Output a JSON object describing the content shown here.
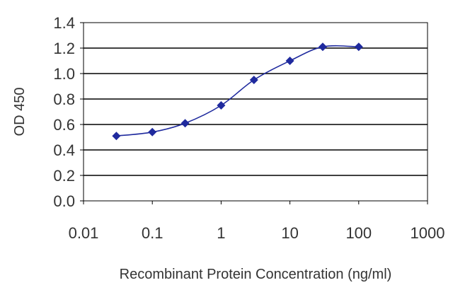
{
  "chart_data": {
    "type": "line",
    "x_scale": "log",
    "xlabel": "Recombinant Protein Concentration (ng/ml)",
    "ylabel": "OD 450",
    "xlim": [
      0.01,
      1000
    ],
    "ylim": [
      0,
      1.4
    ],
    "x_ticks": [
      0.01,
      0.1,
      1,
      10,
      100,
      1000
    ],
    "x_tick_labels": [
      "0.01",
      "0.1",
      "1",
      "10",
      "100",
      "1000"
    ],
    "y_ticks": [
      0,
      0.2,
      0.4,
      0.6,
      0.8,
      1.0,
      1.2,
      1.4
    ],
    "y_tick_labels": [
      "0.0",
      "0.2",
      "0.4",
      "0.6",
      "0.8",
      "1.0",
      "1.2",
      "1.4"
    ],
    "grid": "horizontal",
    "legend": "none",
    "series": [
      {
        "x": [
          0.03,
          0.1,
          0.3,
          1,
          3,
          10,
          30,
          100
        ],
        "y": [
          0.51,
          0.54,
          0.61,
          0.75,
          0.95,
          1.1,
          1.21,
          1.21
        ],
        "color": "#1f2a9e",
        "marker": "diamond"
      }
    ]
  }
}
